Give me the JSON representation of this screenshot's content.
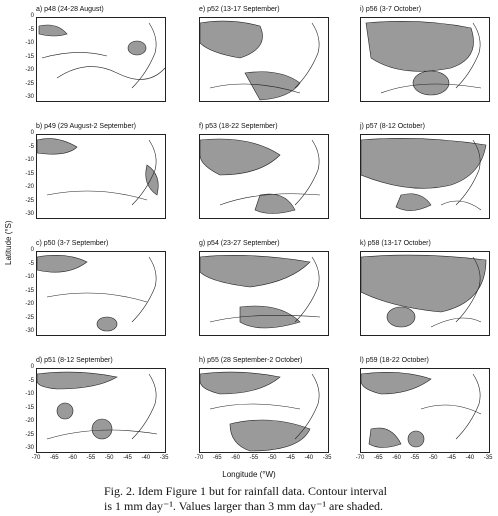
{
  "panels": [
    {
      "title": "a) p48 (24-28 August)"
    },
    {
      "title": "e) p52 (13-17 September)"
    },
    {
      "title": "i) p56 (3-7 October)"
    },
    {
      "title": "b) p49 (29 August-2 September)"
    },
    {
      "title": "f) p53 (18-22 September)"
    },
    {
      "title": "j) p57 (8-12 October)"
    },
    {
      "title": "c) p50 (3-7 September)"
    },
    {
      "title": "g) p54 (23-27 September)"
    },
    {
      "title": "k) p58 (13-17 October)"
    },
    {
      "title": "d) p51 (8-12 September)"
    },
    {
      "title": "h) p55 (28 September-2 October)"
    },
    {
      "title": "l) p59 (18-22 October)"
    }
  ],
  "axes": {
    "ylabel": "Latitude (°S)",
    "xlabel": "Longitude (°W)",
    "yticks": [
      "0",
      "-5",
      "-10",
      "-15",
      "-20",
      "-25",
      "-30"
    ],
    "xticks": [
      "-70",
      "-65",
      "-60",
      "-55",
      "-50",
      "-45",
      "-40",
      "-35"
    ]
  },
  "caption": {
    "line1": "Fig. 2. Idem Figure 1 but for rainfall data. Contour interval",
    "line2": "is 1 mm day⁻¹. Values larger than 3 mm day⁻¹ are shaded."
  },
  "colors": {
    "shade": "#9a9a9a",
    "line": "#222222"
  }
}
